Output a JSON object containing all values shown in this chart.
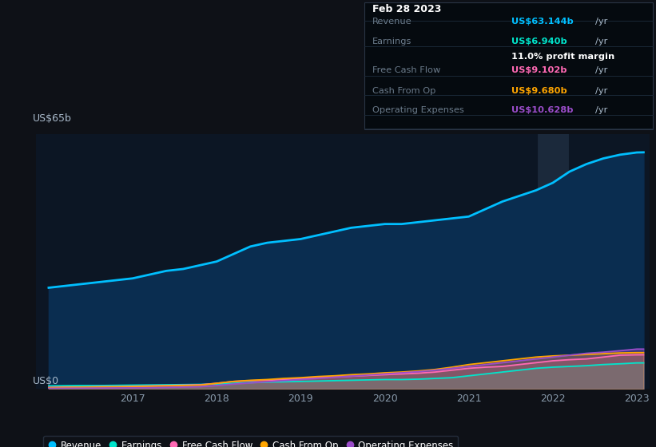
{
  "background_color": "#0e1117",
  "chart_bg_color": "#0c1624",
  "grid_color": "#1a2a3a",
  "ylabel_text": "US$65b",
  "y0_text": "US$0",
  "x_ticks": [
    2017,
    2018,
    2019,
    2020,
    2021,
    2022,
    2023
  ],
  "years": [
    2016.0,
    2016.2,
    2016.4,
    2016.6,
    2016.8,
    2017.0,
    2017.2,
    2017.4,
    2017.6,
    2017.8,
    2018.0,
    2018.2,
    2018.4,
    2018.6,
    2018.8,
    2019.0,
    2019.2,
    2019.4,
    2019.6,
    2019.8,
    2020.0,
    2020.2,
    2020.4,
    2020.6,
    2020.8,
    2021.0,
    2021.2,
    2021.4,
    2021.6,
    2021.8,
    2022.0,
    2022.2,
    2022.4,
    2022.6,
    2022.8,
    2023.0,
    2023.08
  ],
  "revenue": [
    27.0,
    27.5,
    28.0,
    28.5,
    29.0,
    29.5,
    30.5,
    31.5,
    32.0,
    33.0,
    34.0,
    36.0,
    38.0,
    39.0,
    39.5,
    40.0,
    41.0,
    42.0,
    43.0,
    43.5,
    44.0,
    44.0,
    44.5,
    45.0,
    45.5,
    46.0,
    48.0,
    50.0,
    51.5,
    53.0,
    55.0,
    58.0,
    60.0,
    61.5,
    62.5,
    63.1,
    63.14
  ],
  "earnings": [
    0.8,
    0.85,
    0.9,
    0.9,
    0.95,
    1.0,
    1.05,
    1.1,
    1.15,
    1.2,
    1.3,
    1.5,
    1.7,
    1.8,
    1.9,
    2.0,
    2.1,
    2.2,
    2.3,
    2.4,
    2.5,
    2.5,
    2.6,
    2.8,
    3.0,
    3.5,
    4.0,
    4.5,
    5.0,
    5.5,
    5.8,
    6.0,
    6.2,
    6.5,
    6.7,
    6.94,
    6.94
  ],
  "free_cash_flow": [
    0.4,
    0.5,
    0.5,
    0.6,
    0.6,
    0.7,
    0.8,
    0.9,
    1.0,
    1.1,
    1.5,
    2.0,
    2.2,
    2.3,
    2.5,
    2.8,
    3.0,
    3.2,
    3.4,
    3.6,
    3.8,
    4.0,
    4.2,
    4.5,
    5.0,
    5.5,
    5.8,
    6.0,
    6.5,
    7.0,
    7.5,
    7.8,
    8.0,
    8.5,
    9.0,
    9.1,
    9.1
  ],
  "cash_from_op": [
    0.3,
    0.4,
    0.45,
    0.5,
    0.55,
    0.6,
    0.7,
    0.8,
    0.9,
    1.0,
    1.5,
    2.0,
    2.3,
    2.5,
    2.8,
    3.0,
    3.3,
    3.5,
    3.8,
    4.0,
    4.3,
    4.5,
    4.8,
    5.2,
    5.8,
    6.5,
    7.0,
    7.5,
    8.0,
    8.5,
    8.8,
    9.0,
    9.2,
    9.4,
    9.6,
    9.68,
    9.68
  ],
  "operating_expenses": [
    0.15,
    0.18,
    0.2,
    0.22,
    0.25,
    0.28,
    0.32,
    0.4,
    0.5,
    0.6,
    0.9,
    1.3,
    1.6,
    1.9,
    2.2,
    2.5,
    2.8,
    3.1,
    3.4,
    3.7,
    4.0,
    4.3,
    4.6,
    5.0,
    5.5,
    6.0,
    6.5,
    7.0,
    7.5,
    8.0,
    8.5,
    9.0,
    9.5,
    9.8,
    10.2,
    10.628,
    10.628
  ],
  "revenue_color": "#00bfff",
  "earnings_color": "#00e5cc",
  "free_cash_flow_color": "#ff69b4",
  "cash_from_op_color": "#ffa500",
  "operating_expenses_color": "#9b4dca",
  "revenue_fill": "#0a2a4a",
  "tooltip": {
    "title": "Feb 28 2023",
    "rows": [
      {
        "label": "Revenue",
        "value": "US$63.144b",
        "value_color": "#00bfff",
        "suffix": " /yr"
      },
      {
        "label": "Earnings",
        "value": "US$6.940b",
        "value_color": "#00e5cc",
        "suffix": " /yr",
        "extra": "11.0% profit margin"
      },
      {
        "label": "Free Cash Flow",
        "value": "US$9.102b",
        "value_color": "#ff69b4",
        "suffix": " /yr"
      },
      {
        "label": "Cash From Op",
        "value": "US$9.680b",
        "value_color": "#ffa500",
        "suffix": " /yr"
      },
      {
        "label": "Operating Expenses",
        "value": "US$10.628b",
        "value_color": "#9b4dca",
        "suffix": " /yr"
      }
    ]
  },
  "legend": [
    {
      "label": "Revenue",
      "color": "#00bfff"
    },
    {
      "label": "Earnings",
      "color": "#00e5cc"
    },
    {
      "label": "Free Cash Flow",
      "color": "#ff69b4"
    },
    {
      "label": "Cash From Op",
      "color": "#ffa500"
    },
    {
      "label": "Operating Expenses",
      "color": "#9b4dca"
    }
  ]
}
